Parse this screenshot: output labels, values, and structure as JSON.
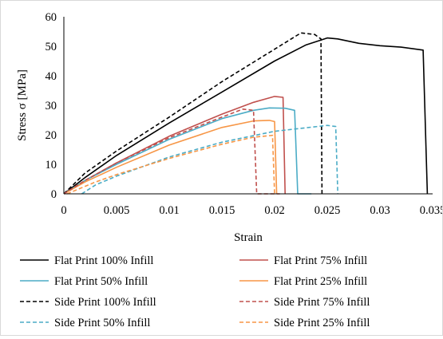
{
  "chart_data": {
    "type": "line",
    "title": "",
    "xlabel": "Strain",
    "ylabel": "Stress σ [MPa]",
    "xlim": [
      0,
      0.035
    ],
    "ylim": [
      0,
      60
    ],
    "x_ticks": [
      0,
      0.005,
      0.01,
      0.015,
      0.02,
      0.025,
      0.03,
      0.035
    ],
    "x_tick_labels": [
      "0",
      "0.005",
      "0.01",
      "0.015",
      "0.02",
      "0.025",
      "0.03",
      "0.035"
    ],
    "y_ticks": [
      0,
      10,
      20,
      30,
      40,
      50,
      60
    ],
    "y_tick_labels": [
      "0",
      "10",
      "20",
      "30",
      "40",
      "50",
      "60"
    ],
    "grid": false,
    "legend_position": "bottom",
    "series": [
      {
        "name": "Flat Print 100% Infill",
        "color": "#000000",
        "dash": "solid",
        "points": [
          [
            0,
            0
          ],
          [
            0.002,
            5.5
          ],
          [
            0.005,
            13
          ],
          [
            0.01,
            24
          ],
          [
            0.015,
            34.5
          ],
          [
            0.02,
            45
          ],
          [
            0.023,
            50.5
          ],
          [
            0.025,
            52.8
          ],
          [
            0.026,
            52.5
          ],
          [
            0.028,
            51
          ],
          [
            0.03,
            50.2
          ],
          [
            0.032,
            49.7
          ],
          [
            0.0341,
            48.7
          ],
          [
            0.0345,
            0
          ]
        ]
      },
      {
        "name": "Flat Print 75% Infill",
        "color": "#c0504d",
        "dash": "solid",
        "points": [
          [
            0,
            0
          ],
          [
            0.002,
            4.5
          ],
          [
            0.005,
            10.5
          ],
          [
            0.01,
            19.5
          ],
          [
            0.015,
            27
          ],
          [
            0.018,
            31
          ],
          [
            0.02,
            33
          ],
          [
            0.0208,
            32.7
          ],
          [
            0.021,
            0
          ]
        ]
      },
      {
        "name": "Flat Print 50% Infill",
        "color": "#4bacc6",
        "dash": "solid",
        "points": [
          [
            0,
            0
          ],
          [
            0.002,
            4.5
          ],
          [
            0.005,
            10
          ],
          [
            0.01,
            18.5
          ],
          [
            0.015,
            25.5
          ],
          [
            0.018,
            28.3
          ],
          [
            0.0195,
            29.1
          ],
          [
            0.021,
            29
          ],
          [
            0.0219,
            28.3
          ],
          [
            0.0222,
            0
          ],
          [
            0.0235,
            0
          ]
        ]
      },
      {
        "name": "Flat Print 25% Infill",
        "color": "#f79646",
        "dash": "solid",
        "points": [
          [
            0,
            0
          ],
          [
            0.002,
            4
          ],
          [
            0.005,
            9
          ],
          [
            0.01,
            16.5
          ],
          [
            0.015,
            22.5
          ],
          [
            0.018,
            24.7
          ],
          [
            0.0195,
            24.9
          ],
          [
            0.02,
            24.5
          ],
          [
            0.0202,
            0
          ]
        ]
      },
      {
        "name": "Side Print 100% Infill",
        "color": "#000000",
        "dash": "dashed",
        "points": [
          [
            0,
            0
          ],
          [
            0.002,
            7
          ],
          [
            0.005,
            14.5
          ],
          [
            0.01,
            26
          ],
          [
            0.015,
            38
          ],
          [
            0.02,
            49
          ],
          [
            0.0225,
            54.5
          ],
          [
            0.0238,
            54
          ],
          [
            0.0244,
            52.5
          ],
          [
            0.0245,
            0
          ]
        ]
      },
      {
        "name": "Side Print 75% Infill",
        "color": "#c0504d",
        "dash": "dashed",
        "points": [
          [
            0,
            0
          ],
          [
            0.002,
            4.5
          ],
          [
            0.005,
            10.5
          ],
          [
            0.01,
            19
          ],
          [
            0.015,
            26
          ],
          [
            0.017,
            28.7
          ],
          [
            0.018,
            28.3
          ],
          [
            0.0183,
            0
          ],
          [
            0.0205,
            0
          ]
        ]
      },
      {
        "name": "Side Print 50% Infill",
        "color": "#4bacc6",
        "dash": "dashed",
        "points": [
          [
            0.0017,
            0
          ],
          [
            0.003,
            3
          ],
          [
            0.005,
            6
          ],
          [
            0.01,
            12.5
          ],
          [
            0.015,
            17.5
          ],
          [
            0.02,
            21.2
          ],
          [
            0.025,
            23.2
          ],
          [
            0.0258,
            22.8
          ],
          [
            0.026,
            0
          ]
        ]
      },
      {
        "name": "Side Print 25% Infill",
        "color": "#f79646",
        "dash": "dashed",
        "points": [
          [
            0.0003,
            0
          ],
          [
            0.003,
            4
          ],
          [
            0.005,
            6.5
          ],
          [
            0.01,
            12
          ],
          [
            0.015,
            16.8
          ],
          [
            0.018,
            19.2
          ],
          [
            0.0198,
            19.8
          ],
          [
            0.02,
            0
          ]
        ]
      }
    ]
  }
}
